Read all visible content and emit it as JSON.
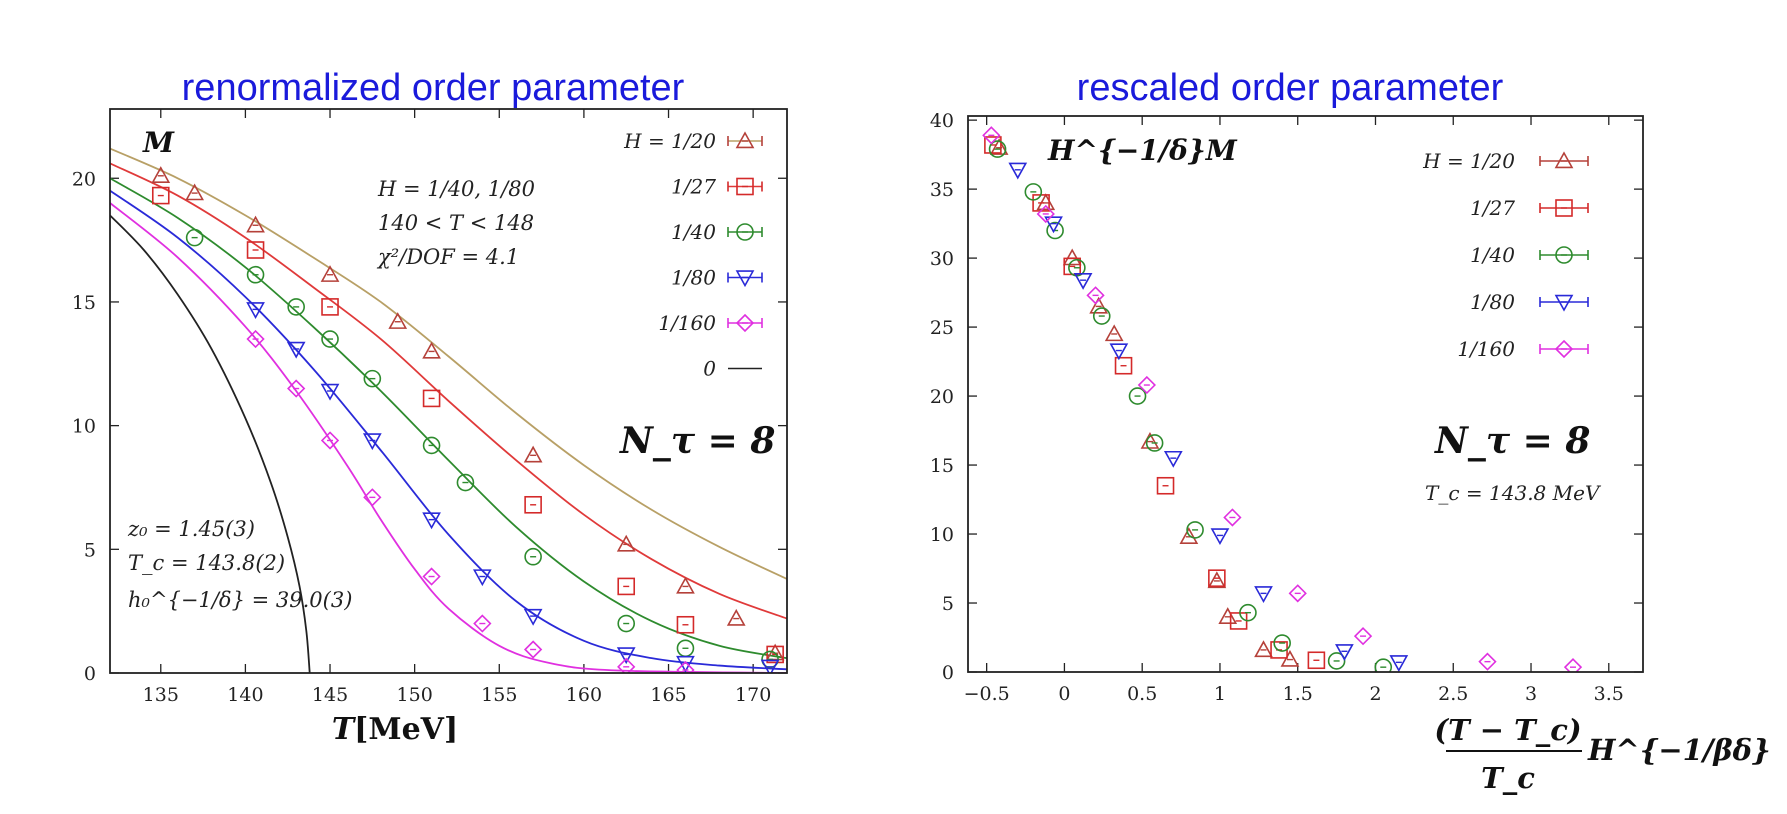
{
  "chart_data": [
    {
      "type": "line",
      "title": "renormalized order parameter",
      "ylabel": "M",
      "xlabel": "T[MeV]",
      "xlim": [
        132,
        172
      ],
      "ylim": [
        0,
        22.8
      ],
      "xticks": [
        135,
        140,
        145,
        150,
        155,
        160,
        165,
        170
      ],
      "yticks": [
        0,
        5,
        10,
        15,
        20
      ],
      "annotations": [
        "H = 1/40, 1/80",
        "140 < T < 148",
        "χ²/DOF = 4.1"
      ],
      "params": [
        "z₀ = 1.45(3)",
        "T_c = 143.8(2)",
        "h₀^{−1/δ} = 39.0(3)"
      ],
      "nt_label": "N_τ = 8",
      "legend_position": "top-right",
      "series": [
        {
          "name": "H = 1/20",
          "marker": "triangle",
          "color": "#b5413a",
          "curve_color": "#b8a066",
          "points": [
            [
              135,
              20.1
            ],
            [
              137,
              19.4
            ],
            [
              140.6,
              18.1
            ],
            [
              145,
              16.1
            ],
            [
              149,
              14.2
            ],
            [
              151,
              13.0
            ],
            [
              157,
              8.8
            ],
            [
              162.5,
              5.2
            ],
            [
              166,
              3.5
            ],
            [
              169,
              2.2
            ],
            [
              171.3,
              0.8
            ]
          ],
          "curve": [
            [
              132,
              21.2
            ],
            [
              136,
              20.0
            ],
            [
              140,
              18.5
            ],
            [
              144,
              16.8
            ],
            [
              148,
              15.0
            ],
            [
              152,
              12.8
            ],
            [
              156,
              10.5
            ],
            [
              160,
              8.4
            ],
            [
              164,
              6.6
            ],
            [
              168,
              5.1
            ],
            [
              172,
              3.8
            ]
          ]
        },
        {
          "name": "1/27",
          "marker": "square",
          "color": "#d42a2a",
          "curve_color": "#e03a3a",
          "points": [
            [
              135,
              19.3
            ],
            [
              140.6,
              17.1
            ],
            [
              145,
              14.8
            ],
            [
              151,
              11.1
            ],
            [
              157,
              6.8
            ],
            [
              162.5,
              3.5
            ],
            [
              166,
              1.95
            ],
            [
              171.3,
              0.75
            ]
          ],
          "curve": [
            [
              132,
              20.6
            ],
            [
              136,
              19.3
            ],
            [
              140,
              17.6
            ],
            [
              144,
              15.6
            ],
            [
              148,
              13.5
            ],
            [
              152,
              11.0
            ],
            [
              156,
              8.6
            ],
            [
              160,
              6.4
            ],
            [
              164,
              4.6
            ],
            [
              168,
              3.2
            ],
            [
              172,
              2.2
            ]
          ]
        },
        {
          "name": "1/40",
          "marker": "circle",
          "color": "#2e8b2e",
          "curve_color": "#2e8b2e",
          "points": [
            [
              137,
              17.6
            ],
            [
              140.6,
              16.1
            ],
            [
              143,
              14.8
            ],
            [
              145,
              13.5
            ],
            [
              147.5,
              11.9
            ],
            [
              151,
              9.2
            ],
            [
              153,
              7.7
            ],
            [
              157,
              4.7
            ],
            [
              162.5,
              2.0
            ],
            [
              166,
              1.0
            ],
            [
              171,
              0.55
            ]
          ],
          "curve": [
            [
              132,
              20.0
            ],
            [
              136,
              18.4
            ],
            [
              140,
              16.4
            ],
            [
              144,
              14.0
            ],
            [
              148,
              11.4
            ],
            [
              152,
              8.6
            ],
            [
              156,
              5.9
            ],
            [
              160,
              3.7
            ],
            [
              164,
              2.1
            ],
            [
              168,
              1.1
            ],
            [
              172,
              0.6
            ]
          ]
        },
        {
          "name": "1/80",
          "marker": "triangle-down",
          "color": "#2a2ad8",
          "curve_color": "#2a2ad8",
          "points": [
            [
              140.6,
              14.7
            ],
            [
              143,
              13.1
            ],
            [
              145,
              11.4
            ],
            [
              147.5,
              9.4
            ],
            [
              151,
              6.2
            ],
            [
              154,
              3.9
            ],
            [
              157,
              2.3
            ],
            [
              162.5,
              0.75
            ],
            [
              166,
              0.4
            ],
            [
              171,
              0.25
            ]
          ],
          "curve": [
            [
              132,
              19.5
            ],
            [
              136,
              17.6
            ],
            [
              140,
              15.2
            ],
            [
              144,
              12.3
            ],
            [
              148,
              9.0
            ],
            [
              152,
              5.6
            ],
            [
              156,
              2.9
            ],
            [
              160,
              1.3
            ],
            [
              164,
              0.6
            ],
            [
              168,
              0.3
            ],
            [
              172,
              0.15
            ]
          ]
        },
        {
          "name": "1/160",
          "marker": "diamond",
          "color": "#e030e0",
          "curve_color": "#e030e0",
          "points": [
            [
              140.6,
              13.5
            ],
            [
              143,
              11.5
            ],
            [
              145,
              9.4
            ],
            [
              147.5,
              7.1
            ],
            [
              151,
              3.9
            ],
            [
              154,
              2.0
            ],
            [
              157,
              0.95
            ],
            [
              162.5,
              0.25
            ],
            [
              166,
              0.12
            ]
          ],
          "curve": [
            [
              132,
              19.0
            ],
            [
              136,
              16.8
            ],
            [
              140,
              14.0
            ],
            [
              143,
              11.4
            ],
            [
              146,
              8.4
            ],
            [
              148,
              6.2
            ],
            [
              150,
              4.2
            ],
            [
              152,
              2.6
            ],
            [
              155,
              1.1
            ],
            [
              158,
              0.4
            ],
            [
              162,
              0.1
            ],
            [
              172,
              0.0
            ]
          ]
        },
        {
          "name": "0",
          "marker": "none",
          "color": "#222222",
          "curve_color": "#222222",
          "points": [],
          "curve": [
            [
              132,
              18.5
            ],
            [
              134,
              17.1
            ],
            [
              136,
              15.3
            ],
            [
              138,
              13.1
            ],
            [
              140,
              10.3
            ],
            [
              141.5,
              7.7
            ],
            [
              142.5,
              5.5
            ],
            [
              143.2,
              3.5
            ],
            [
              143.6,
              1.7
            ],
            [
              143.8,
              0.0
            ]
          ]
        }
      ]
    },
    {
      "type": "scatter",
      "title": "rescaled order parameter",
      "ylabel": "H^{−1/δ}M",
      "xlabel_numerator": "(T − T_c)",
      "xlabel_denominator": "T_c",
      "xlabel_factor": "H^{−1/βδ}",
      "xlim": [
        -0.62,
        3.72
      ],
      "ylim": [
        0,
        40.3
      ],
      "xticks": [
        -0.5,
        0,
        0.5,
        1,
        1.5,
        2,
        2.5,
        3,
        3.5
      ],
      "xtick_labels": [
        "−0.5",
        "0",
        "0.5",
        "1",
        "1.5",
        "2",
        "2.5",
        "3",
        "3.5"
      ],
      "yticks": [
        0,
        5,
        10,
        15,
        20,
        25,
        30,
        35,
        40
      ],
      "nt_label": "N_τ = 8",
      "tc_label": "T_c = 143.8 MeV",
      "legend_position": "top-right",
      "series": [
        {
          "name": "H = 1/20",
          "marker": "triangle",
          "color": "#b5413a",
          "points": [
            [
              -0.42,
              38.0
            ],
            [
              -0.12,
              34.0
            ],
            [
              0.05,
              30.0
            ],
            [
              0.22,
              26.5
            ],
            [
              0.32,
              24.5
            ],
            [
              0.55,
              16.7
            ],
            [
              0.8,
              9.8
            ],
            [
              0.98,
              6.6
            ],
            [
              1.05,
              4.0
            ],
            [
              1.28,
              1.6
            ],
            [
              1.45,
              0.9
            ]
          ]
        },
        {
          "name": "1/27",
          "marker": "square",
          "color": "#d42a2a",
          "points": [
            [
              -0.46,
              38.2
            ],
            [
              -0.15,
              34.0
            ],
            [
              0.05,
              29.4
            ],
            [
              0.38,
              22.2
            ],
            [
              0.65,
              13.5
            ],
            [
              0.98,
              6.8
            ],
            [
              1.12,
              3.7
            ],
            [
              1.38,
              1.6
            ],
            [
              1.62,
              0.85
            ]
          ]
        },
        {
          "name": "1/40",
          "marker": "circle",
          "color": "#2e8b2e",
          "points": [
            [
              -0.43,
              37.9
            ],
            [
              -0.2,
              34.8
            ],
            [
              -0.06,
              32.0
            ],
            [
              0.08,
              29.3
            ],
            [
              0.24,
              25.8
            ],
            [
              0.47,
              20.0
            ],
            [
              0.58,
              16.6
            ],
            [
              0.84,
              10.3
            ],
            [
              1.18,
              4.3
            ],
            [
              1.4,
              2.1
            ],
            [
              1.75,
              0.8
            ],
            [
              2.05,
              0.35
            ]
          ]
        },
        {
          "name": "1/80",
          "marker": "triangle-down",
          "color": "#2a2ad8",
          "points": [
            [
              -0.3,
              36.4
            ],
            [
              -0.07,
              32.5
            ],
            [
              0.12,
              28.4
            ],
            [
              0.35,
              23.3
            ],
            [
              0.7,
              15.5
            ],
            [
              1.0,
              9.9
            ],
            [
              1.28,
              5.7
            ],
            [
              1.8,
              1.5
            ],
            [
              2.15,
              0.7
            ]
          ]
        },
        {
          "name": "1/160",
          "marker": "diamond",
          "color": "#e030e0",
          "points": [
            [
              -0.47,
              38.9
            ],
            [
              -0.12,
              33.2
            ],
            [
              0.2,
              27.3
            ],
            [
              0.53,
              20.8
            ],
            [
              1.08,
              11.2
            ],
            [
              1.5,
              5.7
            ],
            [
              1.92,
              2.6
            ],
            [
              2.72,
              0.75
            ],
            [
              3.27,
              0.35
            ]
          ]
        }
      ]
    }
  ]
}
